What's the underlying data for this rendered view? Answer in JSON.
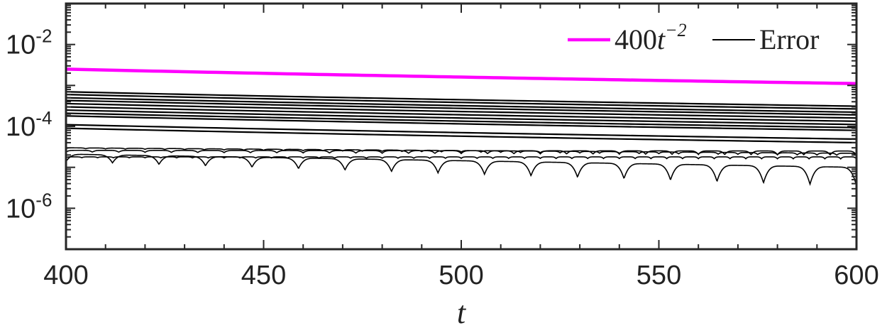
{
  "chart_data": {
    "type": "line",
    "xlabel": "t",
    "ylabel": "",
    "xlim": [
      400,
      600
    ],
    "ylim": [
      1e-07,
      0.1
    ],
    "yscale": "log",
    "x_ticks": [
      "400",
      "450",
      "500",
      "550",
      "600"
    ],
    "y_ticks": [
      {
        "base": "10",
        "exp": "-2",
        "value": 0.01
      },
      {
        "base": "10",
        "exp": "-4",
        "value": 0.0001
      },
      {
        "base": "10",
        "exp": "-6",
        "value": 1e-06
      }
    ],
    "grid": false,
    "legend_position": "top-right",
    "reference_line": {
      "name_prefix": "400",
      "name_var": "t",
      "name_sup": "−2",
      "coefficient": 400,
      "power": -2,
      "color": "#ff00ff"
    },
    "error_series": {
      "name": "Error",
      "color": "#000000",
      "decaying_lines_start_values": [
        0.0007,
        0.0006,
        0.0005,
        0.00043,
        0.00036,
        0.0003,
        0.00025,
        0.00021,
        0.00018,
        0.00011,
        9e-05
      ],
      "oscillating_lines": [
        {
          "start_value": 3e-05,
          "end_value": 2.2e-05,
          "dip_depth": 0.05,
          "arches": 40
        },
        {
          "start_value": 2.6e-05,
          "end_value": 2.5e-05,
          "dip_depth": 0.1,
          "arches": 30
        },
        {
          "start_value": 2.1e-05,
          "end_value": 1e-05,
          "dip_depth": 0.45,
          "arches": 17
        },
        {
          "start_value": 1.8e-05,
          "end_value": 1.8e-05,
          "dip_depth": 0.05,
          "arches": 50
        }
      ]
    }
  }
}
